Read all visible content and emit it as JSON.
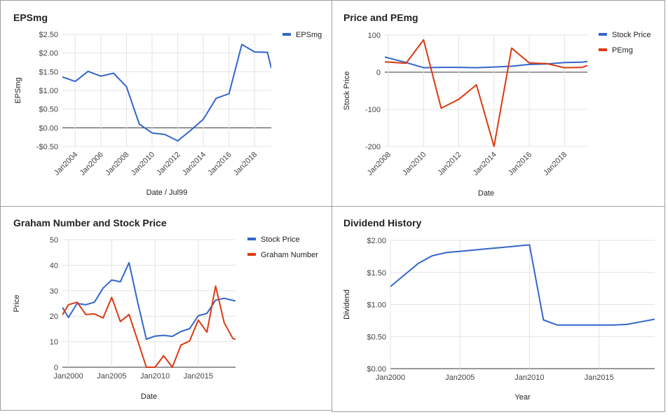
{
  "colors": {
    "blue": "#3366cc",
    "red": "#dc3912",
    "grid": "#e3e3e3",
    "zero": "#333333"
  },
  "chart_data": [
    {
      "type": "line",
      "title": "EPSmg",
      "xlabel": "Date / Jul99",
      "ylabel": "EPSmg",
      "xlim": [
        2003,
        2019.3
      ],
      "ylim": [
        -0.5,
        2.5
      ],
      "y_ticks": [
        -0.5,
        0,
        0.5,
        1,
        1.5,
        2,
        2.5
      ],
      "y_tick_labels": [
        "-$0.50",
        "$0.00",
        "$0.50",
        "$1.00",
        "$1.50",
        "$2.00",
        "$2.50"
      ],
      "x_ticks": [
        2004,
        2006,
        2008,
        2010,
        2012,
        2014,
        2016,
        2018
      ],
      "x_tick_labels": [
        "Jan2004",
        "Jan2006",
        "Jan2008",
        "Jan2010",
        "Jan2012",
        "Jan2014",
        "Jan2016",
        "Jan2018"
      ],
      "legend_position": "top-right",
      "series": [
        {
          "name": "EPSmg",
          "color": "#3366cc",
          "x": [
            2003,
            2004,
            2005,
            2006,
            2007,
            2008,
            2009,
            2010,
            2011,
            2012,
            2013,
            2014,
            2015,
            2016,
            2017,
            2018,
            2019,
            2019.3
          ],
          "y": [
            1.36,
            1.24,
            1.51,
            1.38,
            1.46,
            1.1,
            0.1,
            -0.14,
            -0.18,
            -0.35,
            -0.07,
            0.23,
            0.79,
            0.91,
            2.23,
            2.03,
            2.02,
            1.6
          ]
        }
      ]
    },
    {
      "type": "line",
      "title": "Price and PEmg",
      "xlabel": "Date",
      "ylabel": "Stock Price",
      "xlim": [
        2007.8,
        2019.3
      ],
      "ylim": [
        -200,
        100
      ],
      "y_ticks": [
        -200,
        -100,
        0,
        100
      ],
      "y_tick_labels": [
        "-200",
        "-100",
        "0",
        "100"
      ],
      "x_ticks": [
        2008,
        2010,
        2012,
        2014,
        2016,
        2018
      ],
      "x_tick_labels": [
        "Jan2008",
        "Jan2010",
        "Jan2012",
        "Jan2014",
        "Jan2016",
        "Jan2018"
      ],
      "legend_position": "top-right",
      "series": [
        {
          "name": "Stock Price",
          "color": "#3366cc",
          "x": [
            2007.8,
            2009,
            2010,
            2011,
            2012,
            2013,
            2014,
            2015,
            2016,
            2017,
            2018,
            2019,
            2019.3
          ],
          "y": [
            41,
            26,
            12,
            13,
            13,
            12,
            14,
            16,
            21,
            22,
            26,
            27,
            29
          ]
        },
        {
          "name": "PEmg",
          "color": "#dc3912",
          "x": [
            2007.8,
            2009,
            2010,
            2011,
            2012,
            2013,
            2014,
            2015,
            2016,
            2017,
            2018,
            2019,
            2019.3
          ],
          "y": [
            28,
            24,
            87,
            -97,
            -73,
            -34,
            -200,
            65,
            25,
            23,
            12,
            13,
            18
          ]
        }
      ]
    },
    {
      "type": "line",
      "title": "Graham Number and Stock Price",
      "xlabel": "Date",
      "ylabel": "Price",
      "xlim": [
        1999.3,
        2019.3
      ],
      "ylim": [
        0,
        50
      ],
      "y_ticks": [
        0,
        10,
        20,
        30,
        40,
        50
      ],
      "y_tick_labels": [
        "0",
        "10",
        "20",
        "30",
        "40",
        "50"
      ],
      "x_ticks": [
        2000,
        2005,
        2010,
        2015
      ],
      "x_tick_labels": [
        "Jan2000",
        "Jan2005",
        "Jan2010",
        "Jan2015"
      ],
      "legend_position": "top-right",
      "series": [
        {
          "name": "Stock Price",
          "color": "#3366cc",
          "x": [
            1999.3,
            2000,
            2001,
            2002,
            2003,
            2004,
            2005,
            2006,
            2007,
            2008,
            2009,
            2010,
            2011,
            2012,
            2013,
            2014,
            2015,
            2016,
            2017,
            2018,
            2019,
            2019.3
          ],
          "y": [
            23.5,
            19.5,
            25,
            24.5,
            25.5,
            31,
            34.2,
            33.5,
            41,
            25.5,
            11,
            12.2,
            12.5,
            12.1,
            14,
            15.1,
            20.2,
            21.1,
            26.3,
            27,
            26.2,
            26
          ]
        },
        {
          "name": "Graham Number",
          "color": "#dc3912",
          "x": [
            1999.3,
            2000,
            2001,
            2002,
            2003,
            2004,
            2005,
            2006,
            2007,
            2008,
            2009,
            2010,
            2011,
            2012,
            2013,
            2014,
            2015,
            2016,
            2017,
            2018,
            2019,
            2019.3
          ],
          "y": [
            20.5,
            24.5,
            25.5,
            20.7,
            20.9,
            19.3,
            27.4,
            17.9,
            20.7,
            10.5,
            0,
            0,
            4.5,
            0,
            8.7,
            10.3,
            18.5,
            13.7,
            31.8,
            17.4,
            11.2,
            11
          ]
        }
      ]
    },
    {
      "type": "line",
      "title": "Dividend History",
      "xlabel": "Year",
      "ylabel": "Dividend",
      "xlim": [
        2000,
        2019
      ],
      "ylim": [
        0,
        2
      ],
      "y_ticks": [
        0,
        0.5,
        1,
        1.5,
        2
      ],
      "y_tick_labels": [
        "$0.00",
        "$0.50",
        "$1.00",
        "$1.50",
        "$2.00"
      ],
      "x_ticks": [
        2000,
        2005,
        2010,
        2015
      ],
      "x_tick_labels": [
        "Jan2000",
        "Jan2005",
        "Jan2010",
        "Jan2015"
      ],
      "legend_position": "none",
      "series": [
        {
          "name": "",
          "color": "#3366cc",
          "x": [
            2000,
            2001,
            2002,
            2003,
            2004,
            2005,
            2006,
            2007,
            2008,
            2009,
            2010,
            2011,
            2012,
            2013,
            2014,
            2015,
            2016,
            2017,
            2018,
            2019
          ],
          "y": [
            1.28,
            1.46,
            1.64,
            1.76,
            1.81,
            1.83,
            1.85,
            1.87,
            1.89,
            1.91,
            1.93,
            0.76,
            0.68,
            0.68,
            0.68,
            0.68,
            0.68,
            0.69,
            0.73,
            0.77
          ]
        }
      ]
    }
  ]
}
